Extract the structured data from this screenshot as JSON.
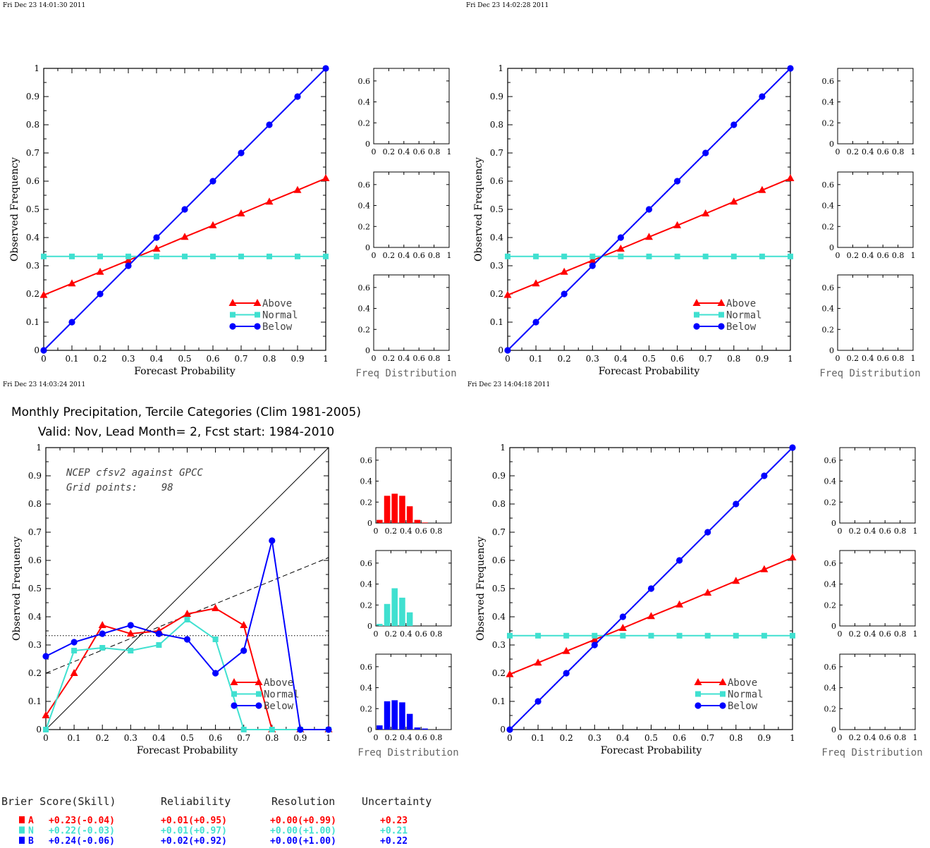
{
  "colors": {
    "above": "#ff0000",
    "normal": "#40e0d0",
    "below": "#0000ff"
  },
  "timestamps": [
    "Fri Dec 23 14:01:30 2011",
    "Fri Dec 23 14:02:28 2011",
    "Fri Dec 23 14:03:24 2011",
    "Fri Dec 23 14:04:18 2011"
  ],
  "legend": {
    "above": "Above",
    "normal": "Normal",
    "below": "Below"
  },
  "axis_labels": {
    "x": "Forecast Probability",
    "y": "Observed Frequency",
    "freq": "Freq Distribution"
  },
  "main_title": {
    "line1": "Monthly Precipitation, Tercile Categories (Clim 1981-2005)",
    "line2": "Valid: Nov, Lead Month= 2, Fcst start: 1984-2010"
  },
  "annotation": {
    "line1": "NCEP cfsv2 against GPCC",
    "line2": "Grid points:    98"
  },
  "brier": {
    "headers": [
      "Brier Score(Skill)",
      "Reliability",
      "Resolution",
      "Uncertainty"
    ],
    "rows": [
      {
        "cat": "A",
        "score": "+0.23(-0.04)",
        "rel": "+0.01(+0.95)",
        "res": "+0.00(+0.99)",
        "unc": "+0.23"
      },
      {
        "cat": "N",
        "score": "+0.22(-0.03)",
        "rel": "+0.01(+0.97)",
        "res": "+0.00(+1.00)",
        "unc": "+0.21"
      },
      {
        "cat": "B",
        "score": "+0.24(-0.06)",
        "rel": "+0.02(+0.92)",
        "res": "+0.00(+1.00)",
        "unc": "+0.22"
      }
    ]
  },
  "chart_data": [
    {
      "type": "line",
      "panel": "top-left",
      "xlabel": "Forecast Probability",
      "ylabel": "Observed Frequency",
      "xlim": [
        0,
        1
      ],
      "ylim": [
        0,
        1
      ],
      "x_ticks": [
        "0",
        "0.1",
        "0.2",
        "0.3",
        "0.4",
        "0.5",
        "0.6",
        "0.7",
        "0.8",
        "0.9",
        "1"
      ],
      "y_ticks": [
        "0",
        "0.1",
        "0.2",
        "0.3",
        "0.4",
        "0.5",
        "0.6",
        "0.7",
        "0.8",
        "0.9",
        "1"
      ],
      "legend_position": "bottom-right",
      "x": [
        0,
        0.1,
        0.2,
        0.3,
        0.4,
        0.5,
        0.6,
        0.7,
        0.8,
        0.9,
        1.0
      ],
      "series": [
        {
          "name": "Above",
          "marker": "triangle",
          "values": [
            0.196,
            0.237,
            0.278,
            0.319,
            0.36,
            0.402,
            0.443,
            0.485,
            0.527,
            0.568,
            0.61
          ]
        },
        {
          "name": "Normal",
          "marker": "square",
          "values": [
            0.333,
            0.333,
            0.333,
            0.333,
            0.333,
            0.333,
            0.333,
            0.333,
            0.333,
            0.333,
            0.333
          ]
        },
        {
          "name": "Below",
          "marker": "circle",
          "values": [
            0,
            0.1,
            0.2,
            0.3,
            0.4,
            0.5,
            0.6,
            0.7,
            0.8,
            0.9,
            1.0
          ]
        }
      ],
      "freq_distribution": {
        "xlim": [
          0,
          1
        ],
        "ylim": [
          0,
          0.72
        ],
        "x_ticks": [
          "0",
          "0.2",
          "0.4",
          "0.6",
          "0.8",
          "1"
        ],
        "y_ticks": [
          "0",
          "0.2",
          "0.4",
          "0.6"
        ],
        "above": [],
        "normal": [],
        "below": []
      }
    },
    {
      "type": "line",
      "panel": "top-right",
      "xlabel": "Forecast Probability",
      "ylabel": "Observed Frequency",
      "xlim": [
        0,
        1
      ],
      "ylim": [
        0,
        1
      ],
      "x_ticks": [
        "0",
        "0.1",
        "0.2",
        "0.3",
        "0.4",
        "0.5",
        "0.6",
        "0.7",
        "0.8",
        "0.9",
        "1"
      ],
      "y_ticks": [
        "0",
        "0.1",
        "0.2",
        "0.3",
        "0.4",
        "0.5",
        "0.6",
        "0.7",
        "0.8",
        "0.9",
        "1"
      ],
      "legend_position": "bottom-right",
      "x": [
        0,
        0.1,
        0.2,
        0.3,
        0.4,
        0.5,
        0.6,
        0.7,
        0.8,
        0.9,
        1.0
      ],
      "series": [
        {
          "name": "Above",
          "marker": "triangle",
          "values": [
            0.196,
            0.237,
            0.278,
            0.319,
            0.36,
            0.402,
            0.443,
            0.485,
            0.527,
            0.568,
            0.61
          ]
        },
        {
          "name": "Normal",
          "marker": "square",
          "values": [
            0.333,
            0.333,
            0.333,
            0.333,
            0.333,
            0.333,
            0.333,
            0.333,
            0.333,
            0.333,
            0.333
          ]
        },
        {
          "name": "Below",
          "marker": "circle",
          "values": [
            0,
            0.1,
            0.2,
            0.3,
            0.4,
            0.5,
            0.6,
            0.7,
            0.8,
            0.9,
            1.0
          ]
        }
      ],
      "freq_distribution": {
        "xlim": [
          0,
          1
        ],
        "ylim": [
          0,
          0.72
        ],
        "x_ticks": [
          "0",
          "0.2",
          "0.4",
          "0.6",
          "0.8",
          "1"
        ],
        "y_ticks": [
          "0",
          "0.2",
          "0.4",
          "0.6"
        ],
        "above": [],
        "normal": [],
        "below": []
      }
    },
    {
      "type": "line",
      "panel": "bottom-left",
      "xlabel": "Forecast Probability",
      "ylabel": "Observed Frequency",
      "xlim": [
        0,
        1
      ],
      "ylim": [
        0,
        1
      ],
      "x_ticks": [
        "0",
        "0.1",
        "0.2",
        "0.3",
        "0.4",
        "0.5",
        "0.6",
        "0.7",
        "0.8",
        "0.9",
        "1"
      ],
      "y_ticks": [
        "0",
        "0.1",
        "0.2",
        "0.3",
        "0.4",
        "0.5",
        "0.6",
        "0.7",
        "0.8",
        "0.9",
        "1"
      ],
      "legend_position": "bottom-right",
      "reference_lines": {
        "diagonal": [
          [
            0,
            0
          ],
          [
            1,
            1
          ]
        ],
        "dashed": [
          [
            0,
            0.2
          ],
          [
            1,
            0.61
          ]
        ],
        "dotted": [
          [
            0,
            0.333
          ],
          [
            1,
            0.333
          ]
        ]
      },
      "x": [
        0,
        0.1,
        0.2,
        0.3,
        0.4,
        0.5,
        0.6,
        0.7,
        0.8,
        0.9,
        1.0
      ],
      "series": [
        {
          "name": "Above",
          "marker": "triangle",
          "values": [
            0.05,
            0.2,
            0.37,
            0.34,
            0.35,
            0.41,
            0.43,
            0.37,
            0,
            0,
            0
          ]
        },
        {
          "name": "Normal",
          "marker": "square",
          "values": [
            0,
            0.28,
            0.29,
            0.28,
            0.3,
            0.39,
            0.32,
            0,
            0,
            0,
            0
          ]
        },
        {
          "name": "Below",
          "marker": "circle",
          "values": [
            0.26,
            0.31,
            0.34,
            0.37,
            0.34,
            0.32,
            0.2,
            0.28,
            0.67,
            0,
            0
          ]
        }
      ],
      "freq_distribution": {
        "xlim": [
          0,
          1
        ],
        "ylim": [
          0,
          0.72
        ],
        "x_ticks": [
          "0",
          "0.2",
          "0.4",
          "0.6",
          "0.8"
        ],
        "y_ticks": [
          "0",
          "0.2",
          "0.4",
          "0.6"
        ],
        "bin_centers": [
          0.05,
          0.15,
          0.25,
          0.35,
          0.45,
          0.55,
          0.65,
          0.75,
          0.85,
          0.95
        ],
        "above": [
          0.03,
          0.26,
          0.28,
          0.26,
          0.16,
          0.03,
          0.005,
          0,
          0,
          0
        ],
        "normal": [
          0.02,
          0.21,
          0.36,
          0.27,
          0.13,
          0,
          0,
          0,
          0,
          0
        ],
        "below": [
          0.04,
          0.27,
          0.28,
          0.26,
          0.15,
          0.02,
          0.01,
          0,
          0,
          0
        ]
      }
    },
    {
      "type": "line",
      "panel": "bottom-right",
      "xlabel": "Forecast Probability",
      "ylabel": "Observed Frequency",
      "xlim": [
        0,
        1
      ],
      "ylim": [
        0,
        1
      ],
      "x_ticks": [
        "0",
        "0.1",
        "0.2",
        "0.3",
        "0.4",
        "0.5",
        "0.6",
        "0.7",
        "0.8",
        "0.9",
        "1"
      ],
      "y_ticks": [
        "0",
        "0.1",
        "0.2",
        "0.3",
        "0.4",
        "0.5",
        "0.6",
        "0.7",
        "0.8",
        "0.9",
        "1"
      ],
      "legend_position": "bottom-right",
      "x": [
        0,
        0.1,
        0.2,
        0.3,
        0.4,
        0.5,
        0.6,
        0.7,
        0.8,
        0.9,
        1.0
      ],
      "series": [
        {
          "name": "Above",
          "marker": "triangle",
          "values": [
            0.196,
            0.237,
            0.278,
            0.319,
            0.36,
            0.402,
            0.443,
            0.485,
            0.527,
            0.568,
            0.61
          ]
        },
        {
          "name": "Normal",
          "marker": "square",
          "values": [
            0.333,
            0.333,
            0.333,
            0.333,
            0.333,
            0.333,
            0.333,
            0.333,
            0.333,
            0.333,
            0.333
          ]
        },
        {
          "name": "Below",
          "marker": "circle",
          "values": [
            0,
            0.1,
            0.2,
            0.3,
            0.4,
            0.5,
            0.6,
            0.7,
            0.8,
            0.9,
            1.0
          ]
        }
      ],
      "freq_distribution": {
        "xlim": [
          0,
          1
        ],
        "ylim": [
          0,
          0.72
        ],
        "x_ticks": [
          "0",
          "0.2",
          "0.4",
          "0.6",
          "0.8",
          "1"
        ],
        "y_ticks": [
          "0",
          "0.2",
          "0.4",
          "0.6"
        ],
        "above": [],
        "normal": [],
        "below": []
      }
    }
  ]
}
